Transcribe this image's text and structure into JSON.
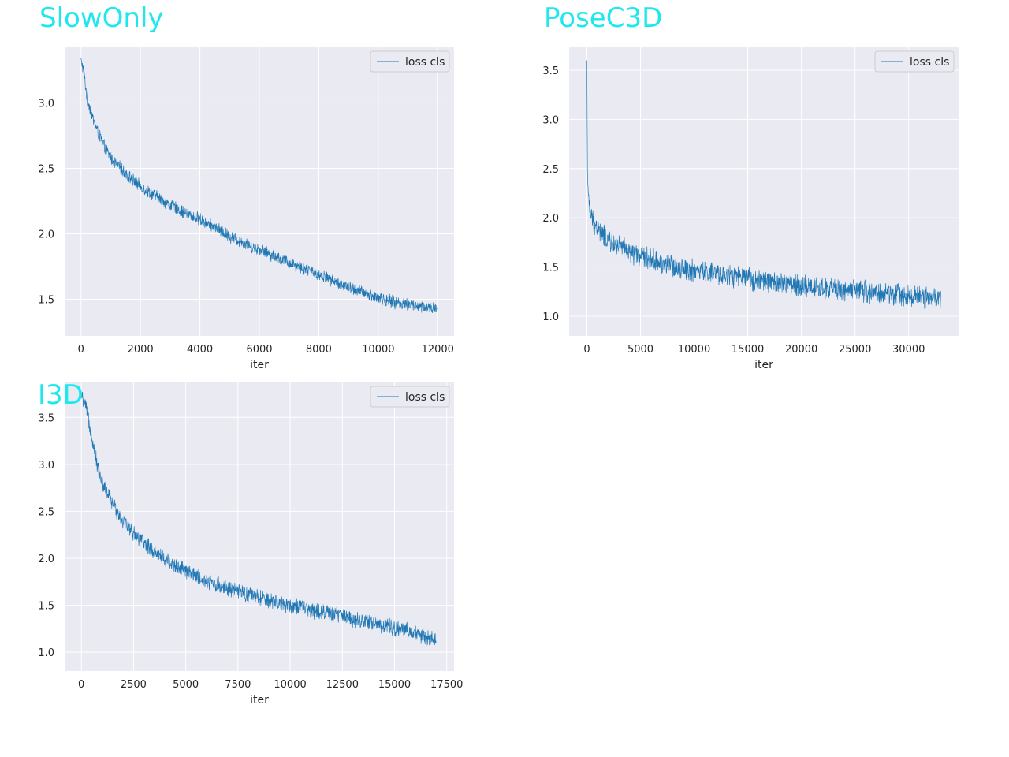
{
  "style": {
    "title_color": "#1ee8ee",
    "plot_bg": "#eaeaf2",
    "grid_color": "#ffffff",
    "line_color": "#1f77b4",
    "tick_color": "#262626"
  },
  "chart_data": [
    {
      "type": "line",
      "title": "SlowOnly",
      "xlabel": "iter",
      "ylabel": "",
      "xlim": [
        -550,
        12550
      ],
      "ylim": [
        1.22,
        3.43
      ],
      "xticks": [
        0,
        2000,
        4000,
        6000,
        8000,
        10000,
        12000
      ],
      "xtick_labels": [
        "0",
        "2000",
        "4000",
        "6000",
        "8000",
        "10000",
        "12000"
      ],
      "yticks": [
        1.5,
        2.0,
        2.5,
        3.0
      ],
      "ytick_labels": [
        "1.5",
        "2.0",
        "2.5",
        "3.0"
      ],
      "grid": true,
      "legend": "top-right",
      "series": [
        {
          "name": "loss cls",
          "x": [
            0,
            100,
            200,
            400,
            600,
            800,
            1000,
            1500,
            2000,
            2500,
            3000,
            3500,
            4000,
            4500,
            5000,
            5500,
            6000,
            6500,
            7000,
            7500,
            8000,
            8500,
            9000,
            9500,
            10000,
            10500,
            11000,
            11500,
            12000
          ],
          "y": [
            3.34,
            3.22,
            3.05,
            2.88,
            2.76,
            2.66,
            2.58,
            2.46,
            2.36,
            2.29,
            2.22,
            2.16,
            2.11,
            2.05,
            1.98,
            1.93,
            1.88,
            1.83,
            1.78,
            1.74,
            1.69,
            1.64,
            1.59,
            1.55,
            1.51,
            1.48,
            1.46,
            1.44,
            1.43
          ],
          "noise": 0.055
        }
      ]
    },
    {
      "type": "line",
      "title": "PoseC3D",
      "xlabel": "iter",
      "ylabel": "",
      "xlim": [
        -1650,
        34650
      ],
      "ylim": [
        0.8,
        3.74
      ],
      "xticks": [
        0,
        5000,
        10000,
        15000,
        20000,
        25000,
        30000
      ],
      "xtick_labels": [
        "0",
        "5000",
        "10000",
        "15000",
        "20000",
        "25000",
        "30000"
      ],
      "yticks": [
        1.0,
        1.5,
        2.0,
        2.5,
        3.0,
        3.5
      ],
      "ytick_labels": [
        "1.0",
        "1.5",
        "2.0",
        "2.5",
        "3.0",
        "3.5"
      ],
      "grid": true,
      "legend": "top-right",
      "series": [
        {
          "name": "loss cls",
          "x": [
            0,
            50,
            150,
            400,
            800,
            1500,
            2500,
            4000,
            6000,
            8000,
            10000,
            12500,
            15000,
            17500,
            20000,
            22500,
            25000,
            27500,
            30000,
            33000
          ],
          "y": [
            3.6,
            2.5,
            2.15,
            2.0,
            1.92,
            1.82,
            1.73,
            1.65,
            1.57,
            1.51,
            1.46,
            1.42,
            1.38,
            1.34,
            1.31,
            1.28,
            1.26,
            1.23,
            1.21,
            1.18
          ],
          "noise": 0.13
        }
      ]
    },
    {
      "type": "line",
      "title": "I3D",
      "xlabel": "iter",
      "ylabel": "",
      "xlim": [
        -800,
        17850
      ],
      "ylim": [
        0.8,
        3.88
      ],
      "xticks": [
        0,
        2500,
        5000,
        7500,
        10000,
        12500,
        15000,
        17500
      ],
      "xtick_labels": [
        "0",
        "2500",
        "5000",
        "7500",
        "10000",
        "12500",
        "15000",
        "17500"
      ],
      "yticks": [
        1.0,
        1.5,
        2.0,
        2.5,
        3.0,
        3.5
      ],
      "ytick_labels": [
        "1.0",
        "1.5",
        "2.0",
        "2.5",
        "3.0",
        "3.5"
      ],
      "grid": true,
      "legend": "top-right",
      "series": [
        {
          "name": "loss cls",
          "x": [
            0,
            250,
            500,
            750,
            1000,
            1500,
            2000,
            2500,
            3000,
            3500,
            4000,
            5000,
            6000,
            7000,
            8000,
            9000,
            10000,
            11000,
            12000,
            13000,
            14000,
            15000,
            16000,
            17000
          ],
          "y": [
            3.72,
            3.58,
            3.3,
            3.0,
            2.8,
            2.58,
            2.4,
            2.27,
            2.16,
            2.07,
            1.99,
            1.86,
            1.76,
            1.68,
            1.61,
            1.55,
            1.5,
            1.45,
            1.41,
            1.36,
            1.31,
            1.26,
            1.2,
            1.12
          ],
          "noise": 0.1
        }
      ]
    }
  ]
}
